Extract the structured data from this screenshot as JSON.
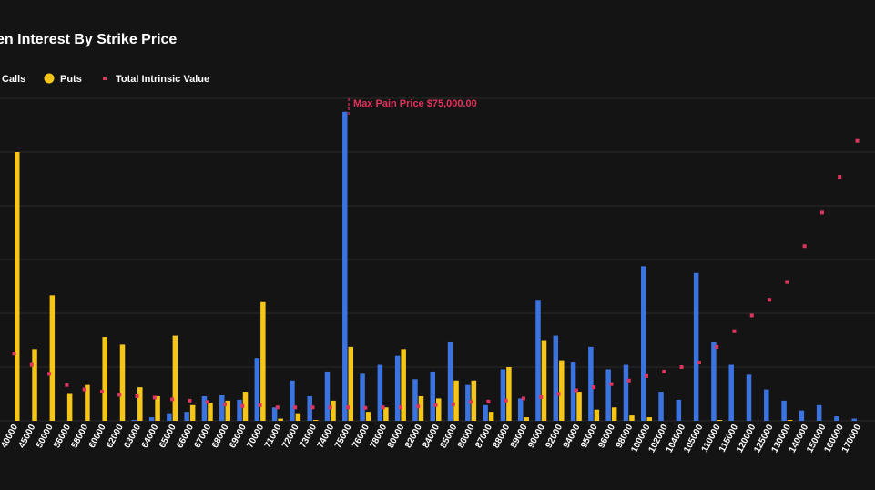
{
  "chart_data": {
    "type": "bar",
    "title": "en Interest By Strike Price",
    "legend": {
      "placement": "top-left",
      "entries": [
        "Calls",
        "Puts",
        "Total Intrinsic Value"
      ]
    },
    "grid": true,
    "categories": [
      "40000",
      "45000",
      "50000",
      "56000",
      "58000",
      "60000",
      "62000",
      "63000",
      "64000",
      "65000",
      "66000",
      "67000",
      "68000",
      "69000",
      "70000",
      "71000",
      "72000",
      "73000",
      "74000",
      "75000",
      "76000",
      "78000",
      "80000",
      "82000",
      "84000",
      "85000",
      "86000",
      "87000",
      "88000",
      "89000",
      "90000",
      "92000",
      "94000",
      "95000",
      "96000",
      "98000",
      "100000",
      "102000",
      "104000",
      "105000",
      "110000",
      "115000",
      "120000",
      "125000",
      "130000",
      "140000",
      "150000",
      "160000",
      "170000"
    ],
    "series": [
      {
        "name": "Calls",
        "type": "bar",
        "color": "#3b73e0",
        "values": [
          0,
          0,
          0,
          0,
          0,
          0,
          0,
          0.2,
          0.8,
          1.5,
          2,
          5.5,
          5.7,
          4.7,
          14,
          3,
          9,
          5.5,
          11,
          69,
          10.5,
          12.5,
          14.5,
          9.3,
          11,
          17.5,
          8,
          3.5,
          11.5,
          5,
          27,
          19,
          13,
          16.5,
          11.5,
          12.5,
          34.5,
          6.5,
          4.7,
          33,
          17.5,
          12.5,
          10.3,
          7,
          4.5,
          2.3,
          3.5,
          1,
          0.5
        ]
      },
      {
        "name": "Puts",
        "type": "bar",
        "color": "#f5c518",
        "values": [
          60,
          16,
          28,
          6,
          8,
          18.7,
          17,
          7.5,
          5.5,
          19,
          3.5,
          4,
          4.5,
          6.5,
          26.5,
          0.5,
          1.5,
          0.2,
          4.5,
          16.5,
          2,
          3,
          16,
          5.5,
          5,
          9,
          9,
          2,
          12,
          0.8,
          18,
          13.5,
          6.5,
          2.5,
          3,
          1.2,
          0.8,
          0,
          0,
          0,
          0.2,
          0,
          0,
          0,
          0.2,
          0,
          0,
          0,
          0
        ]
      },
      {
        "name": "Total Intrinsic Value",
        "type": "scatter",
        "color": "#e0335e",
        "values": [
          15,
          12.5,
          10.5,
          8,
          7,
          6.5,
          5.8,
          5.5,
          5.2,
          4.8,
          4.5,
          4.2,
          3.7,
          3.3,
          3.5,
          3,
          3,
          3,
          3,
          3,
          2.9,
          3,
          3,
          3.2,
          3.5,
          3.7,
          4.2,
          4.3,
          4.5,
          5,
          5.3,
          6,
          6.8,
          7.5,
          8.2,
          9,
          10,
          11,
          12,
          13,
          16.5,
          20,
          23.5,
          27,
          31,
          39,
          46.5,
          54.5,
          62.5
        ]
      }
    ],
    "ylim": [
      0,
      72
    ],
    "annotations": [
      {
        "text": "Max Pain Price $75,000.00",
        "x": "75000",
        "color": "#e0335e"
      }
    ]
  }
}
